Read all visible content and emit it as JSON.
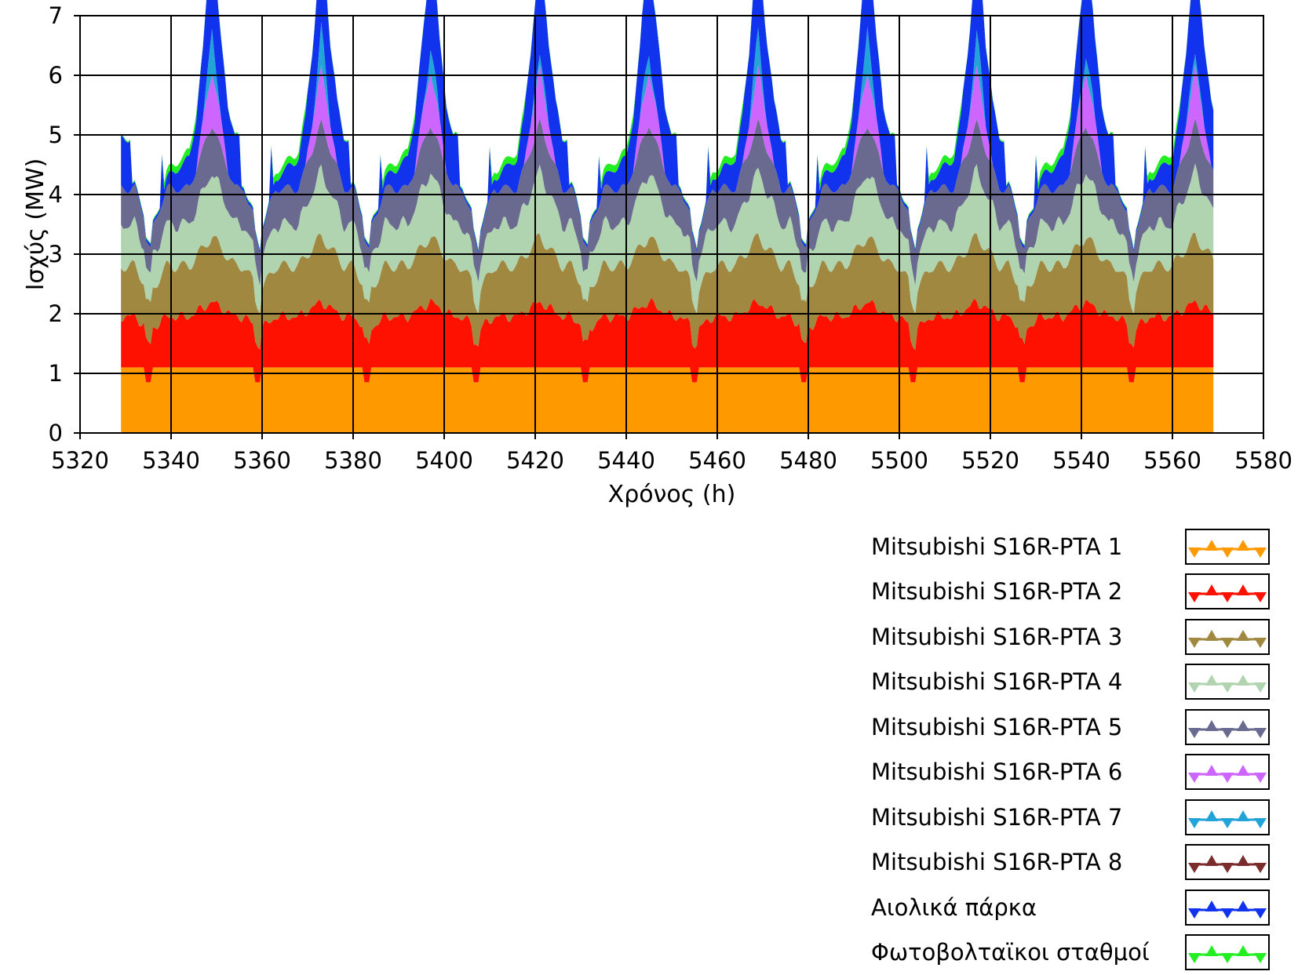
{
  "chart_data": {
    "type": "area",
    "title": "",
    "xlabel": "Χρόνος (h)",
    "ylabel": "Ισχύς (MW)",
    "xlim": [
      5320,
      5580
    ],
    "ylim": [
      0,
      7
    ],
    "x_ticks": [
      "5320",
      "5340",
      "5360",
      "5380",
      "5400",
      "5420",
      "5440",
      "5460",
      "5480",
      "5500",
      "5520",
      "5540",
      "5560",
      "5580"
    ],
    "y_ticks": [
      "0",
      "1",
      "2",
      "3",
      "4",
      "5",
      "6",
      "7"
    ],
    "grid": true,
    "stacked": true,
    "legend_position": "bottom-right",
    "x_start": 5329,
    "x_end": 5569,
    "daily_peaks": [
      5349,
      5373,
      5397,
      5421,
      5445,
      5469,
      5493,
      5517,
      5541,
      5565
    ],
    "series": [
      {
        "name": "Mitsubishi S16R-PTA 1",
        "color": "#FF9900",
        "base": 1.1,
        "dip_to": 0.85
      },
      {
        "name": "Mitsubishi S16R-PTA 2",
        "color": "#FF1100",
        "day": 0.85,
        "night": 0.55,
        "peak": 1.1
      },
      {
        "name": "Mitsubishi S16R-PTA 3",
        "color": "#A08840",
        "day": 0.85,
        "night": 0.55,
        "peak": 1.1
      },
      {
        "name": "Mitsubishi S16R-PTA 4",
        "color": "#B0D4B0",
        "day": 0.7,
        "night": 0.45,
        "peak": 1.1
      },
      {
        "name": "Mitsubishi S16R-PTA 5",
        "color": "#6A6A90",
        "day": 0.6,
        "night": 0.4,
        "peak": 0.8
      },
      {
        "name": "Mitsubishi S16R-PTA 6",
        "color": "#CC66FF",
        "peak": 0.9
      },
      {
        "name": "Mitsubishi S16R-PTA 7",
        "color": "#22A4D8",
        "peak": 0.8
      },
      {
        "name": "Mitsubishi S16R-PTA 8",
        "color": "#7B2D2D",
        "peak": 0
      },
      {
        "name": "Αιολικά πάρκα",
        "color": "#1133EE",
        "day": 0.85,
        "night": 0.1,
        "peak": 0.8
      },
      {
        "name": "Φωτοβολταϊκοι σταθμοί",
        "color": "#22EE22",
        "day": 0.12,
        "night": 0
      }
    ]
  }
}
